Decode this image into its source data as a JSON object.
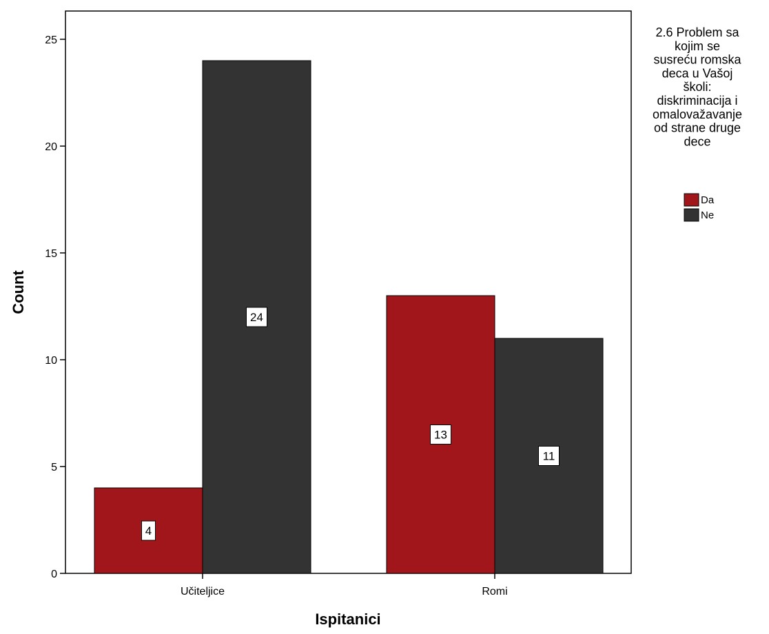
{
  "chart_data": {
    "type": "bar",
    "categories": [
      "Učiteljice",
      "Romi"
    ],
    "series": [
      {
        "name": "Da",
        "values": [
          4,
          13
        ],
        "color": "#a0161a"
      },
      {
        "name": "Ne",
        "values": [
          24,
          11
        ],
        "color": "#333333"
      }
    ],
    "xlabel": "Ispitanici",
    "ylabel": "Count",
    "ylim": [
      0,
      26
    ],
    "yticks": [
      0,
      5,
      10,
      15,
      20,
      25
    ],
    "grid": false,
    "data_labels": true,
    "legend": {
      "title_lines": [
        "2.6 Problem sa",
        "kojim se",
        "susreću romska",
        "deca u Vašoj",
        "školi:",
        "diskriminacija i",
        "omalovažavanje",
        "od strane druge",
        "dece"
      ],
      "placement": "right"
    }
  }
}
